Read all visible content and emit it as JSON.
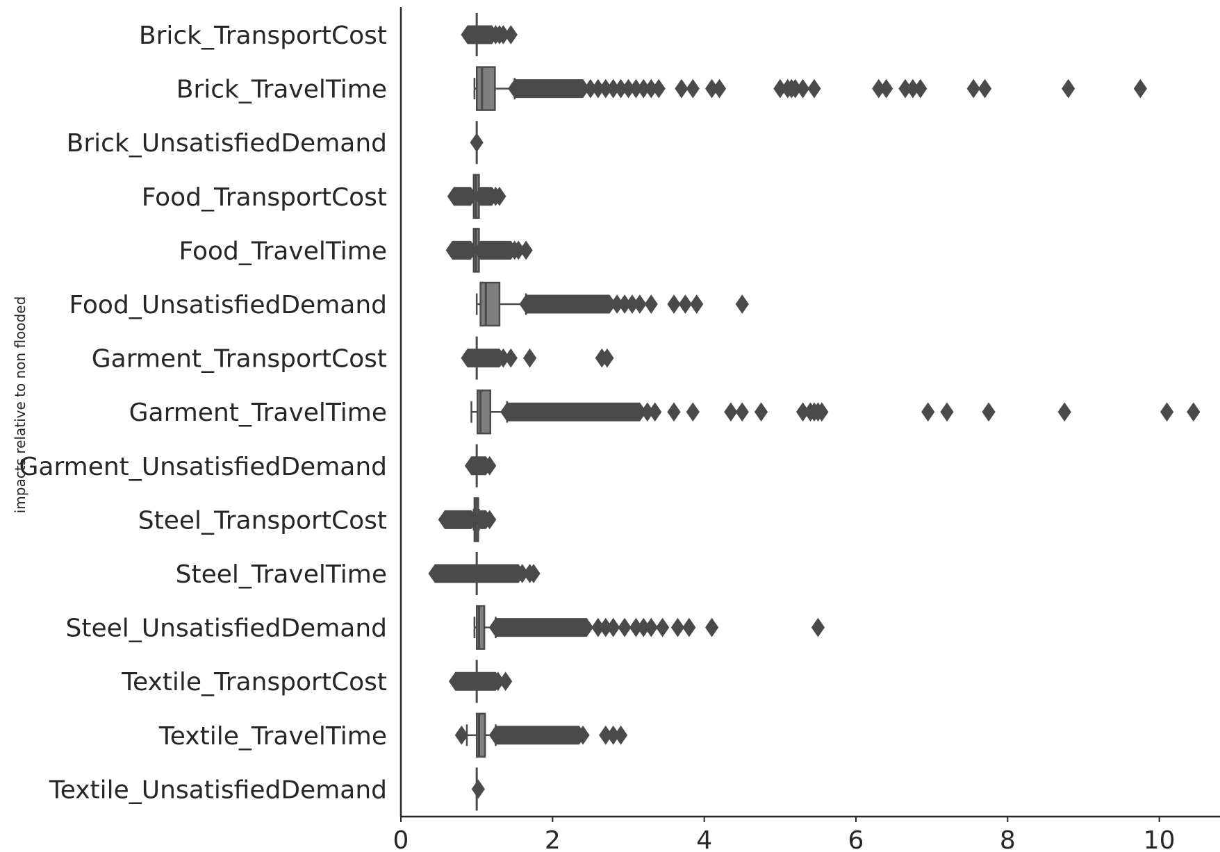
{
  "chart_data": {
    "type": "boxplot",
    "orientation": "horizontal",
    "title": "",
    "xlabel": "",
    "ylabel": "impacts relative to non flooded",
    "xlim": [
      0,
      10.8
    ],
    "xticks": [
      0,
      2,
      4,
      6,
      8,
      10
    ],
    "grid": false,
    "box_color": "#7f7f7f",
    "line_color": "#4a4a4a",
    "categories": [
      "Brick_TransportCost",
      "Brick_TravelTime",
      "Brick_UnsatisfiedDemand",
      "Food_TransportCost",
      "Food_TravelTime",
      "Food_UnsatisfiedDemand",
      "Garment_TransportCost",
      "Garment_TravelTime",
      "Garment_UnsatisfiedDemand",
      "Steel_TransportCost",
      "Steel_TravelTime",
      "Steel_UnsatisfiedDemand",
      "Textile_TransportCost",
      "Textile_TravelTime",
      "Textile_UnsatisfiedDemand"
    ],
    "boxes": [
      {
        "whisker_low": 1.0,
        "q1": 1.0,
        "median": 1.0,
        "q3": 1.0,
        "whisker_high": 1.0,
        "outlier_ranges": [
          [
            0.88,
            1.2
          ]
        ],
        "outliers": [
          1.25,
          1.3,
          1.35,
          1.45
        ]
      },
      {
        "whisker_low": 0.97,
        "q1": 1.0,
        "median": 1.07,
        "q3": 1.24,
        "whisker_high": 1.5,
        "outlier_ranges": [
          [
            1.5,
            2.4
          ]
        ],
        "outliers": [
          2.5,
          2.6,
          2.7,
          2.8,
          2.9,
          3.0,
          3.1,
          3.2,
          3.3,
          3.4,
          3.7,
          3.85,
          4.1,
          4.2,
          5.0,
          5.1,
          5.15,
          5.2,
          5.3,
          5.45,
          6.3,
          6.4,
          6.65,
          6.75,
          6.85,
          7.55,
          7.7,
          8.8,
          9.75
        ]
      },
      {
        "whisker_low": 1.0,
        "q1": 1.0,
        "median": 1.0,
        "q3": 1.0,
        "whisker_high": 1.0,
        "outlier_ranges": [],
        "outliers": [
          1.0
        ]
      },
      {
        "whisker_low": 0.96,
        "q1": 0.96,
        "median": 0.99,
        "q3": 1.03,
        "whisker_high": 1.03,
        "outlier_ranges": [
          [
            0.7,
            0.92
          ],
          [
            1.05,
            1.2
          ]
        ],
        "outliers": [
          1.25,
          1.3
        ]
      },
      {
        "whisker_low": 0.96,
        "q1": 0.96,
        "median": 0.99,
        "q3": 1.03,
        "whisker_high": 1.03,
        "outlier_ranges": [
          [
            0.68,
            0.92
          ],
          [
            1.05,
            1.45
          ]
        ],
        "outliers": [
          1.5,
          1.55,
          1.65
        ]
      },
      {
        "whisker_low": 1.0,
        "q1": 1.05,
        "median": 1.12,
        "q3": 1.3,
        "whisker_high": 1.65,
        "outlier_ranges": [
          [
            1.65,
            2.75
          ]
        ],
        "outliers": [
          2.85,
          2.95,
          3.05,
          3.15,
          3.3,
          3.6,
          3.75,
          3.9,
          4.5
        ]
      },
      {
        "whisker_low": 1.0,
        "q1": 1.0,
        "median": 1.0,
        "q3": 1.0,
        "whisker_high": 1.0,
        "outlier_ranges": [
          [
            0.88,
            1.3
          ]
        ],
        "outliers": [
          1.35,
          1.45,
          1.7,
          2.65,
          2.72
        ]
      },
      {
        "whisker_low": 0.93,
        "q1": 1.01,
        "median": 1.05,
        "q3": 1.18,
        "whisker_high": 1.4,
        "outlier_ranges": [
          [
            1.4,
            3.15
          ]
        ],
        "outliers": [
          3.25,
          3.35,
          3.6,
          3.85,
          4.35,
          4.5,
          4.75,
          5.3,
          5.4,
          5.45,
          5.5,
          5.55,
          6.95,
          7.2,
          7.75,
          8.75,
          10.1,
          10.45
        ]
      },
      {
        "whisker_low": 1.0,
        "q1": 1.0,
        "median": 1.0,
        "q3": 1.0,
        "whisker_high": 1.0,
        "outlier_ranges": [
          [
            0.93,
            1.12
          ]
        ],
        "outliers": [
          1.17
        ]
      },
      {
        "whisker_low": 0.96,
        "q1": 0.97,
        "median": 0.99,
        "q3": 1.02,
        "whisker_high": 1.03,
        "outlier_ranges": [
          [
            0.58,
            0.93
          ],
          [
            1.05,
            1.12
          ]
        ],
        "outliers": [
          1.17
        ]
      },
      {
        "whisker_low": 1.0,
        "q1": 1.0,
        "median": 1.0,
        "q3": 1.0,
        "whisker_high": 1.0,
        "outlier_ranges": [
          [
            0.45,
            1.55
          ]
        ],
        "outliers": [
          1.6,
          1.7,
          1.75
        ]
      },
      {
        "whisker_low": 0.97,
        "q1": 1.0,
        "median": 1.03,
        "q3": 1.1,
        "whisker_high": 1.25,
        "outlier_ranges": [
          [
            1.25,
            2.45
          ]
        ],
        "outliers": [
          2.6,
          2.7,
          2.8,
          2.95,
          3.1,
          3.2,
          3.3,
          3.45,
          3.65,
          3.8,
          4.1,
          5.5
        ]
      },
      {
        "whisker_low": 1.0,
        "q1": 1.0,
        "median": 1.0,
        "q3": 1.0,
        "whisker_high": 1.0,
        "outlier_ranges": [
          [
            0.72,
            1.25
          ]
        ],
        "outliers": [
          1.28,
          1.38
        ]
      },
      {
        "whisker_low": 0.87,
        "q1": 1.0,
        "median": 1.03,
        "q3": 1.11,
        "whisker_high": 1.25,
        "outlier_ranges": [
          [
            1.25,
            2.35
          ]
        ],
        "outliers": [
          0.8,
          2.4,
          2.7,
          2.8,
          2.9
        ]
      },
      {
        "whisker_low": 1.0,
        "q1": 1.0,
        "median": 1.0,
        "q3": 1.0,
        "whisker_high": 1.0,
        "outlier_ranges": [],
        "outliers": [
          1.02
        ]
      }
    ]
  }
}
